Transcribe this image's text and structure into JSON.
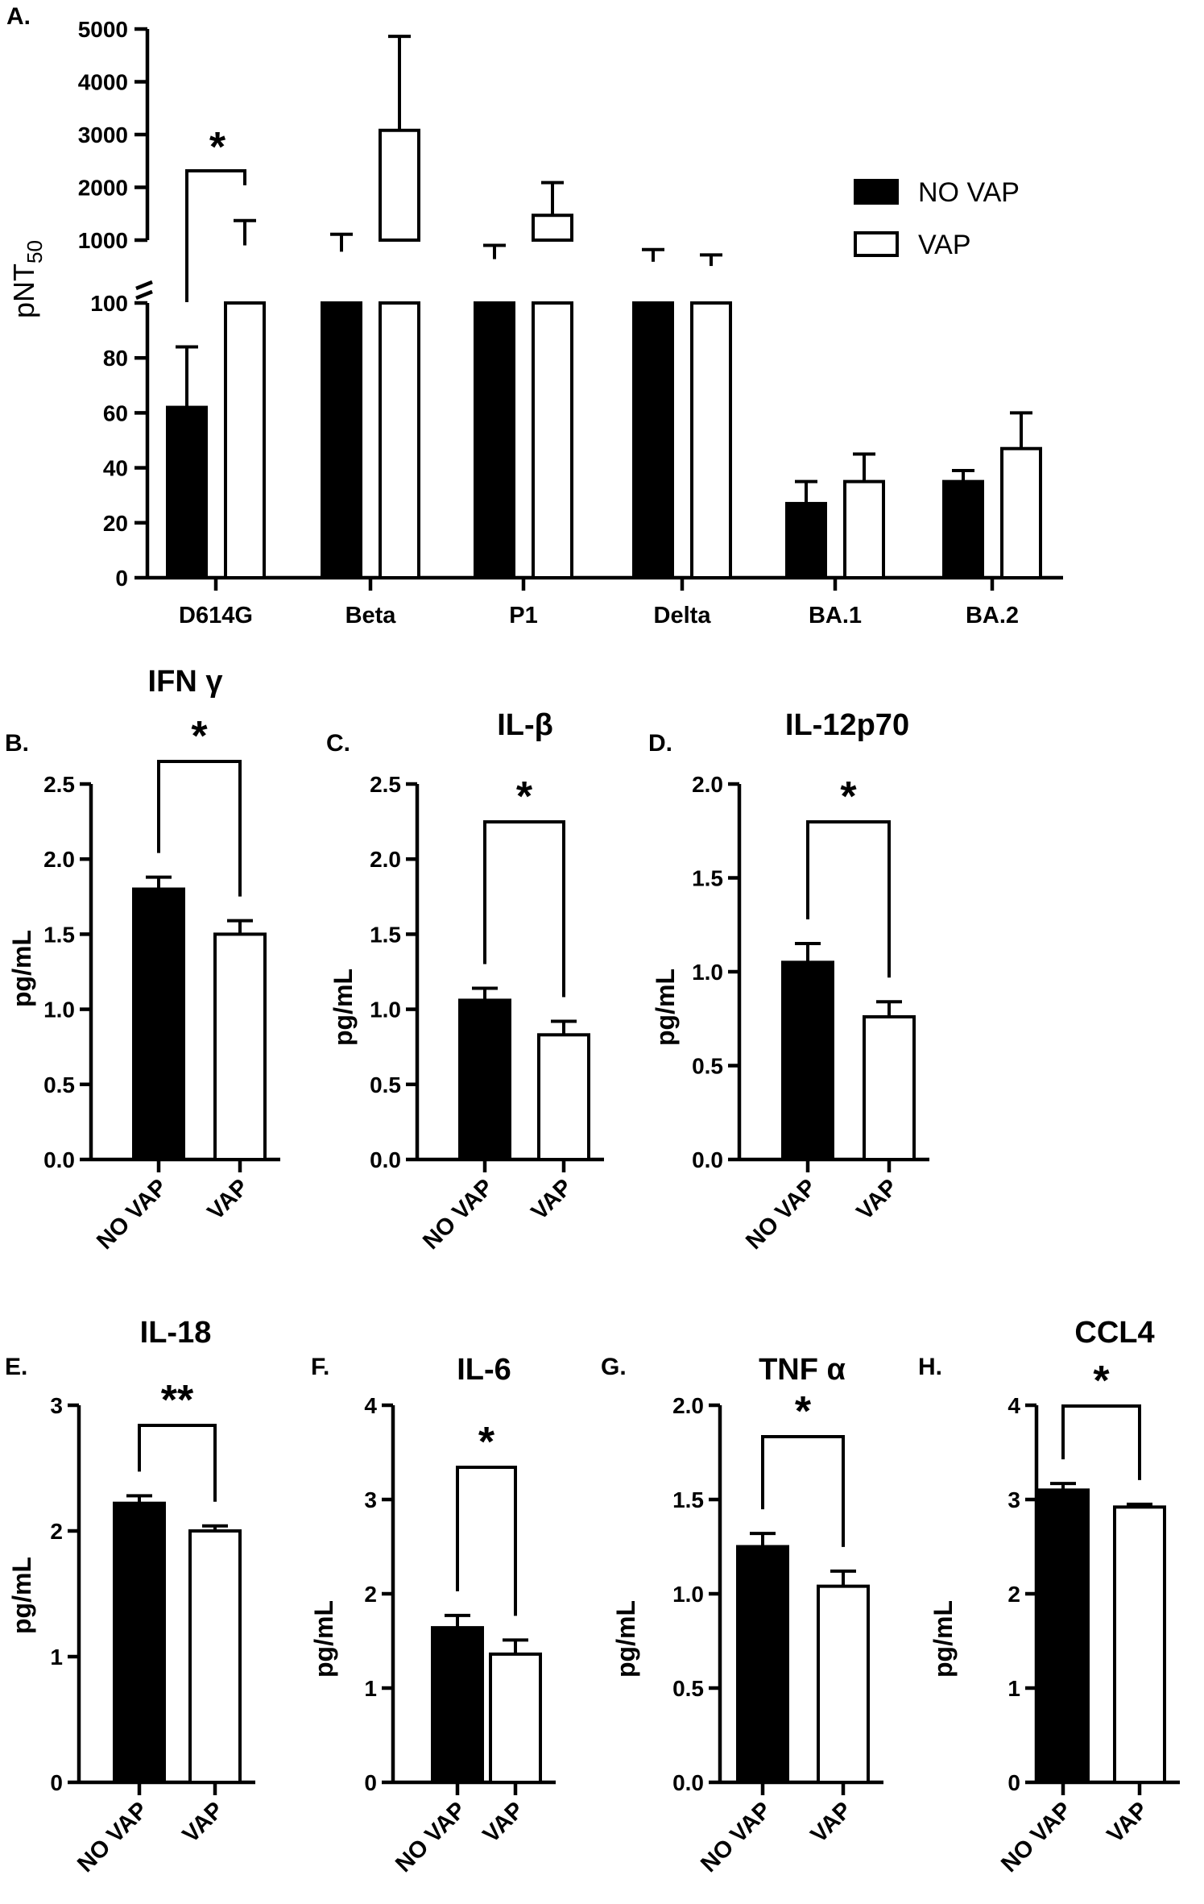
{
  "colors": {
    "no_vap": "#000000",
    "vap": "#ffffff",
    "axis": "#000000"
  },
  "chart_data": [
    {
      "id": "A",
      "type": "bar",
      "letter": "A.",
      "title": "",
      "ylabel": "pNT",
      "ylabel_sub": "50",
      "legend": [
        "NO VAP",
        "VAP"
      ],
      "legend_position": "top-right",
      "categories": [
        "D614G",
        "Beta",
        "P1",
        "Delta",
        "BA.1",
        "BA.2"
      ],
      "series": [
        {
          "name": "NO VAP",
          "values": [
            62,
            780,
            640,
            590,
            27,
            35
          ],
          "errors": [
            22,
            330,
            260,
            230,
            8,
            4
          ]
        },
        {
          "name": "VAP",
          "values": [
            900,
            3080,
            1470,
            510,
            35,
            47
          ],
          "errors": [
            470,
            1780,
            620,
            210,
            10,
            13
          ]
        }
      ],
      "y_lower_range": [
        0,
        100
      ],
      "y_lower_ticks": [
        "0",
        "20",
        "40",
        "60",
        "80",
        "100"
      ],
      "y_upper_range": [
        100,
        5000
      ],
      "y_upper_ticks": [
        "1000",
        "2000",
        "3000",
        "4000",
        "5000"
      ],
      "axis_break": true,
      "grid": false,
      "significance": [
        {
          "category": "D614G",
          "label": "*"
        }
      ]
    },
    {
      "id": "B",
      "type": "bar",
      "letter": "B.",
      "title": "IFN γ",
      "ylabel": "pg/mL",
      "categories": [
        "NO VAP",
        "VAP"
      ],
      "values": [
        1.8,
        1.5
      ],
      "errors": [
        0.08,
        0.09
      ],
      "ylim": [
        0,
        2.5
      ],
      "yticks": [
        "0.0",
        "0.5",
        "1.0",
        "1.5",
        "2.0",
        "2.5"
      ],
      "significance": "*"
    },
    {
      "id": "C",
      "type": "bar",
      "letter": "C.",
      "title": "IL-β",
      "ylabel": "pg/mL",
      "categories": [
        "NO VAP",
        "VAP"
      ],
      "values": [
        1.06,
        0.83
      ],
      "errors": [
        0.08,
        0.09
      ],
      "ylim": [
        0,
        2.5
      ],
      "yticks": [
        "0.0",
        "0.5",
        "1.0",
        "1.5",
        "2.0",
        "2.5"
      ],
      "significance": "*"
    },
    {
      "id": "D",
      "type": "bar",
      "letter": "D.",
      "title": "IL-12p70",
      "ylabel": "pg/mL",
      "categories": [
        "NO VAP",
        "VAP"
      ],
      "values": [
        1.05,
        0.76
      ],
      "errors": [
        0.1,
        0.08
      ],
      "ylim": [
        0,
        2.0
      ],
      "yticks": [
        "0.0",
        "0.5",
        "1.0",
        "1.5",
        "2.0"
      ],
      "significance": "*"
    },
    {
      "id": "E",
      "type": "bar",
      "letter": "E.",
      "title": "IL-18",
      "ylabel": "pg/mL",
      "categories": [
        "NO VAP",
        "VAP"
      ],
      "values": [
        2.22,
        2.0
      ],
      "errors": [
        0.06,
        0.04
      ],
      "ylim": [
        0,
        3
      ],
      "yticks": [
        "0",
        "1",
        "2",
        "3"
      ],
      "significance": "**"
    },
    {
      "id": "F",
      "type": "bar",
      "letter": "F.",
      "title": "IL-6",
      "ylabel": "pg/mL",
      "categories": [
        "NO VAP",
        "VAP"
      ],
      "values": [
        1.64,
        1.36
      ],
      "errors": [
        0.13,
        0.15
      ],
      "ylim": [
        0,
        4
      ],
      "yticks": [
        "0",
        "1",
        "2",
        "3",
        "4"
      ],
      "significance": "*"
    },
    {
      "id": "G",
      "type": "bar",
      "letter": "G.",
      "title": "TNF α",
      "ylabel": "pg/mL",
      "categories": [
        "NO VAP",
        "VAP"
      ],
      "values": [
        1.25,
        1.04
      ],
      "errors": [
        0.07,
        0.08
      ],
      "ylim": [
        0,
        2.0
      ],
      "yticks": [
        "0.0",
        "0.5",
        "1.0",
        "1.5",
        "2.0"
      ],
      "significance": "*"
    },
    {
      "id": "H",
      "type": "bar",
      "letter": "H.",
      "title": "CCL4",
      "ylabel": "pg/mL",
      "categories": [
        "NO VAP",
        "VAP"
      ],
      "values": [
        3.1,
        2.92
      ],
      "errors": [
        0.07,
        0.03
      ],
      "ylim": [
        0,
        4
      ],
      "yticks": [
        "0",
        "1",
        "2",
        "3",
        "4"
      ],
      "significance": "*"
    }
  ]
}
